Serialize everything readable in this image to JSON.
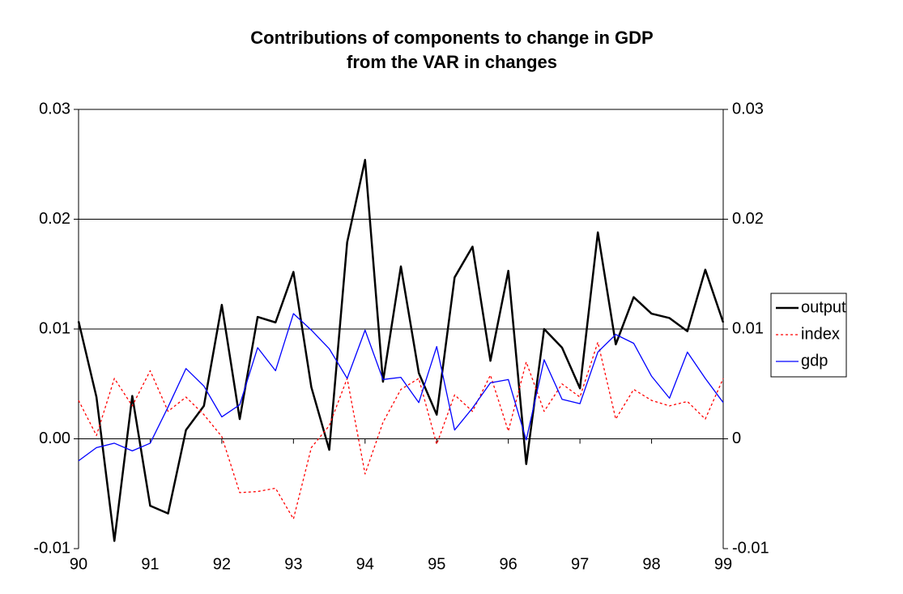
{
  "chart_data": {
    "type": "line",
    "title_lines": [
      "Contributions of components to change in GDP",
      "from the VAR in changes"
    ],
    "categories": [
      "90",
      null,
      null,
      null,
      "91",
      null,
      null,
      null,
      "92",
      null,
      null,
      null,
      "93",
      null,
      null,
      null,
      "94",
      null,
      null,
      null,
      "95",
      null,
      null,
      null,
      "96",
      null,
      null,
      null,
      "97",
      null,
      null,
      null,
      "98",
      null,
      null,
      null,
      "99"
    ],
    "series": [
      {
        "name": "output",
        "color": "#000000",
        "line_style": "solid",
        "line_width": 2.5,
        "values": [
          0.0107,
          0.0038,
          -0.0093,
          0.0039,
          -0.0061,
          -0.0068,
          0.0008,
          0.003,
          0.0122,
          0.0018,
          0.0111,
          0.0106,
          0.0152,
          0.0047,
          -0.001,
          0.0179,
          0.0254,
          0.0052,
          0.0157,
          0.006,
          0.0022,
          0.0147,
          0.0175,
          0.0071,
          0.0153,
          -0.0023,
          0.01,
          0.0083,
          0.0046,
          0.0188,
          0.0086,
          0.0129,
          0.0114,
          0.011,
          0.0098,
          0.0154,
          0.0106
        ]
      },
      {
        "name": "index",
        "color": "#ff0000",
        "line_style": "dotted",
        "line_width": 1.3,
        "values": [
          0.0035,
          0.0003,
          0.0055,
          0.003,
          0.0062,
          0.0025,
          0.0038,
          0.0022,
          0.0002,
          -0.0049,
          -0.0048,
          -0.0045,
          -0.0073,
          -0.0008,
          0.0012,
          0.0055,
          -0.0032,
          0.0015,
          0.0045,
          0.0055,
          -0.0005,
          0.004,
          0.0025,
          0.0058,
          0.0007,
          0.007,
          0.0025,
          0.005,
          0.0038,
          0.0088,
          0.0018,
          0.0045,
          0.0035,
          0.003,
          0.0034,
          0.0018,
          0.0055
        ]
      },
      {
        "name": "gdp",
        "color": "#0000ff",
        "line_style": "solid",
        "line_width": 1.3,
        "values": [
          -0.002,
          -0.0008,
          -0.0004,
          -0.0011,
          -0.0004,
          0.0029,
          0.0064,
          0.0048,
          0.002,
          0.0031,
          0.0083,
          0.0062,
          0.0114,
          0.0099,
          0.0082,
          0.0055,
          0.0099,
          0.0054,
          0.0056,
          0.0033,
          0.0084,
          0.0008,
          0.0028,
          0.0051,
          0.0054,
          -0.0001,
          0.0072,
          0.0036,
          0.0032,
          0.0079,
          0.0095,
          0.0087,
          0.0057,
          0.0037,
          0.0079,
          0.0055,
          0.0033
        ]
      }
    ],
    "ylim": [
      -0.01,
      0.03
    ],
    "yticks": [
      -0.01,
      {
        "value": 0,
        "label": "0.00"
      },
      0.01,
      0.02,
      0.03
    ],
    "y2lim": [
      -0.01,
      0.03
    ],
    "y2ticks": [
      -0.01,
      0,
      0.01,
      0.02,
      0.03
    ],
    "grid": true,
    "legend": "right"
  }
}
